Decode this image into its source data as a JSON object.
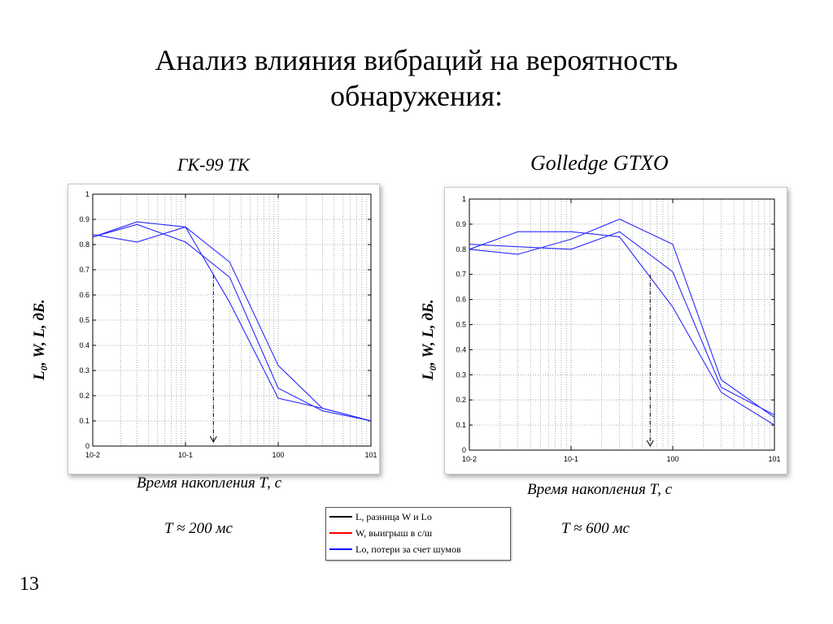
{
  "slide": {
    "title_line1": "Анализ влияния вибраций на вероятность",
    "title_line2": "обнаружения:",
    "page_number": "13"
  },
  "panels": [
    {
      "subtitle": "ГК-99 ТК",
      "ylabel": "L₀, W, L, дБ.",
      "xlabel": "Время накопления Т, с",
      "t_note": "T ≈ 200 мс"
    },
    {
      "subtitle": "Golledge GTXO",
      "ylabel": "L₀, W, L, дБ.",
      "xlabel": "Время накопления Т, с",
      "t_note": "T ≈ 600 мс"
    }
  ],
  "legend": {
    "items": [
      {
        "label": "L, разница W и Lo",
        "color": "#000000"
      },
      {
        "label": "W, выигрыш в с/ш",
        "color": "#ff0000"
      },
      {
        "label": "Lo, потери за счет шумов",
        "color": "#0000ff"
      }
    ]
  },
  "chart_data": [
    {
      "type": "line",
      "xscale": "log",
      "xlim": [
        0.01,
        10
      ],
      "ylim": [
        0,
        1
      ],
      "x_tick_labels": [
        "10-2",
        "10-1",
        "100",
        "101"
      ],
      "y_tick_labels": [
        "0",
        "0.1",
        "0.2",
        "0.3",
        "0.4",
        "0.5",
        "0.6",
        "0.7",
        "0.8",
        "0.9",
        "1"
      ],
      "grid": true,
      "line_color": "#2a2aff",
      "series": [
        {
          "x": [
            0.01,
            0.03,
            0.1,
            0.3,
            1,
            3,
            10
          ],
          "values": [
            0.83,
            0.89,
            0.87,
            0.73,
            0.32,
            0.15,
            0.1
          ]
        },
        {
          "x": [
            0.01,
            0.03,
            0.1,
            0.3,
            1,
            3,
            10
          ],
          "values": [
            0.84,
            0.81,
            0.87,
            0.57,
            0.19,
            0.15,
            0.1
          ]
        },
        {
          "x": [
            0.01,
            0.03,
            0.1,
            0.3,
            1,
            3,
            10
          ],
          "values": [
            0.83,
            0.88,
            0.81,
            0.67,
            0.23,
            0.14,
            0.1
          ]
        }
      ],
      "marker_x": 0.2,
      "marker_y": 0.68
    },
    {
      "type": "line",
      "xscale": "log",
      "xlim": [
        0.01,
        10
      ],
      "ylim": [
        0,
        1
      ],
      "x_tick_labels": [
        "10-2",
        "10-1",
        "100",
        "101"
      ],
      "y_tick_labels": [
        "0",
        "0.1",
        "0.2",
        "0.3",
        "0.4",
        "0.5",
        "0.6",
        "0.7",
        "0.8",
        "0.9",
        "1"
      ],
      "grid": true,
      "line_color": "#2a2aff",
      "series": [
        {
          "x": [
            0.01,
            0.03,
            0.1,
            0.3,
            1,
            3,
            10
          ],
          "values": [
            0.8,
            0.78,
            0.84,
            0.92,
            0.82,
            0.28,
            0.13
          ]
        },
        {
          "x": [
            0.01,
            0.03,
            0.1,
            0.3,
            1,
            3,
            10
          ],
          "values": [
            0.8,
            0.87,
            0.87,
            0.85,
            0.57,
            0.23,
            0.1
          ]
        },
        {
          "x": [
            0.01,
            0.03,
            0.1,
            0.3,
            1,
            3,
            10
          ],
          "values": [
            0.82,
            0.81,
            0.8,
            0.87,
            0.71,
            0.25,
            0.14
          ]
        }
      ],
      "marker_x": 0.6,
      "marker_y": 0.7
    }
  ]
}
